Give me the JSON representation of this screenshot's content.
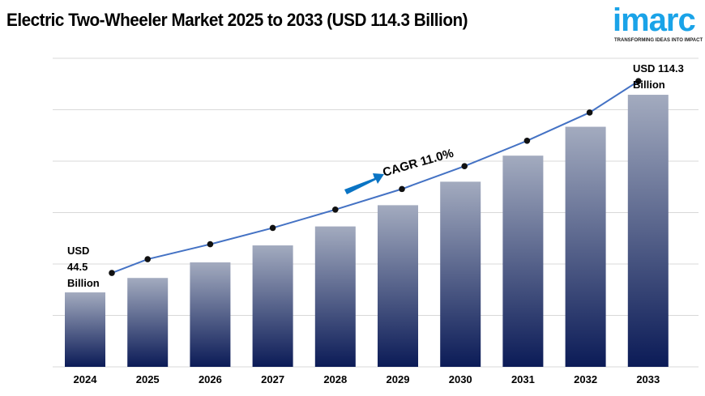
{
  "title": "Electric Two-Wheeler Market 2025 to 2033 (USD 114.3 Billion)",
  "logo": {
    "word": "imarc",
    "tagline": "TRANSFORMING IDEAS INTO IMPACT"
  },
  "colors": {
    "bar_top": "#a3abbf",
    "bar_bottom": "#0b1b57",
    "line": "#4472c4",
    "arrow": "#0a74c4",
    "logo": "#1aa3e8"
  },
  "chart_data": {
    "type": "bar",
    "categories": [
      "2024",
      "2025",
      "2026",
      "2027",
      "2028",
      "2029",
      "2030",
      "2031",
      "2032",
      "2033"
    ],
    "values": [
      44.5,
      49.6,
      55.1,
      61.1,
      67.8,
      75.3,
      83.6,
      92.8,
      103.0,
      114.3
    ],
    "unit": "USD Billion",
    "trend_line": true,
    "grid": "horizontal",
    "annotations": {
      "start": "USD 44.5 Billion",
      "start_lines": [
        "USD",
        "44.5",
        "Billion"
      ],
      "end_lines": [
        "USD 114.3",
        "Billion"
      ],
      "cagr": "CAGR 11.0%"
    }
  }
}
